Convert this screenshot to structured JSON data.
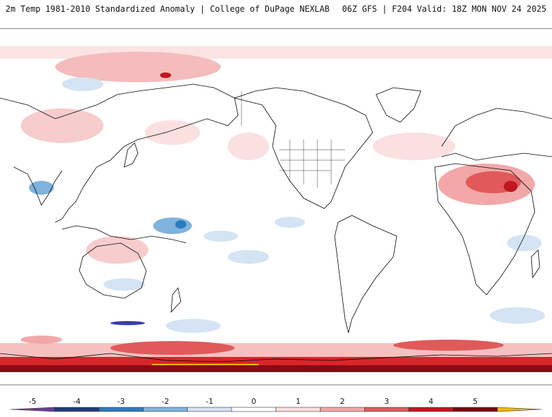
{
  "header": {
    "title_left": "2m Temp 1981-2010 Standardized Anomaly | College of DuPage NEXLAB",
    "title_right": "06Z GFS | F204 Valid: 18Z MON NOV 24 2025"
  },
  "legend": {
    "ticks": [
      "-5",
      "-4",
      "-3",
      "-2",
      "-1",
      "0",
      "1",
      "2",
      "3",
      "4",
      "5"
    ],
    "colors": [
      "#6a3d9a",
      "#1f3a78",
      "#2c7bbf",
      "#7fb2dd",
      "#d4e4f4",
      "#ffffff",
      "#fde0e0",
      "#f2a8a8",
      "#e05a5a",
      "#c0161f",
      "#7a0010",
      "#f5b800"
    ]
  },
  "map": {
    "ocean_color": "#ffffff",
    "land_outline_color": "#000000",
    "warm_color": "#f4c7c7",
    "hot_color": "#d7262b",
    "cold_color": "#c9def2"
  }
}
